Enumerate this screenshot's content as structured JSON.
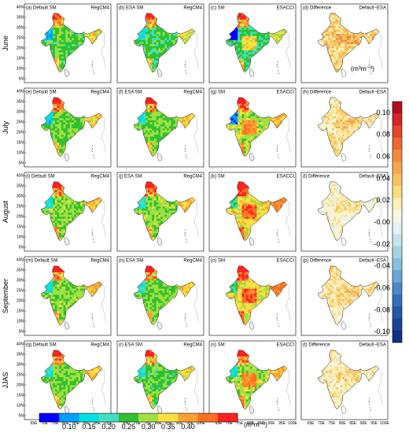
{
  "rows": [
    {
      "name": "June",
      "panels": [
        {
          "label": "(a) Default SM",
          "source": "RegCM4",
          "kind": "sm",
          "level": 0.24,
          "blue_nw": 0.12
        },
        {
          "label": "(b) ESA SM",
          "source": "RegCM4",
          "kind": "sm",
          "level": 0.23,
          "blue_nw": 0.15
        },
        {
          "label": "(c) SM",
          "source": "ESACCI",
          "kind": "obs",
          "level": 0.22,
          "blue_nw": 0.07
        },
        {
          "label": "(d) Difference",
          "source": "Default−ESA",
          "kind": "diff",
          "level": 0.03
        }
      ]
    },
    {
      "name": "July",
      "panels": [
        {
          "label": "(e) Default SM",
          "source": "RegCM4",
          "kind": "sm",
          "level": 0.25,
          "blue_nw": 0.13
        },
        {
          "label": "(f) ESA SM",
          "source": "RegCM4",
          "kind": "sm",
          "level": 0.25,
          "blue_nw": 0.15
        },
        {
          "label": "(g) SM",
          "source": "ESACCI",
          "kind": "obs",
          "level": 0.27,
          "blue_nw": 0.1
        },
        {
          "label": "(h) Difference",
          "source": "Default−ESA",
          "kind": "diff",
          "level": 0.02
        }
      ]
    },
    {
      "name": "August",
      "panels": [
        {
          "label": "(i) Default SM",
          "source": "RegCM4",
          "kind": "sm",
          "level": 0.26,
          "blue_nw": 0.15
        },
        {
          "label": "(j) ESA SM",
          "source": "RegCM4",
          "kind": "sm",
          "level": 0.26,
          "blue_nw": 0.16
        },
        {
          "label": "(k) SM",
          "source": "ESACCI",
          "kind": "obs",
          "level": 0.3,
          "blue_nw": 0.2
        },
        {
          "label": "(l) Difference",
          "source": "Default−ESA",
          "kind": "diff",
          "level": 0.01
        }
      ]
    },
    {
      "name": "September",
      "panels": [
        {
          "label": "(m) Default SM",
          "source": "RegCM4",
          "kind": "sm",
          "level": 0.26,
          "blue_nw": 0.15
        },
        {
          "label": "(n) ESA SM",
          "source": "RegCM4",
          "kind": "sm",
          "level": 0.25,
          "blue_nw": 0.16
        },
        {
          "label": "(o) SM",
          "source": "ESACCI",
          "kind": "obs",
          "level": 0.3,
          "blue_nw": 0.2
        },
        {
          "label": "(p) Difference",
          "source": "Default−ESA",
          "kind": "diff",
          "level": 0.02
        }
      ]
    },
    {
      "name": "JJAS",
      "panels": [
        {
          "label": "(q) Default SM",
          "source": "RegCM4",
          "kind": "sm",
          "level": 0.25,
          "blue_nw": 0.15
        },
        {
          "label": "(r) ESA SM",
          "source": "RegCM4",
          "kind": "sm",
          "level": 0.24,
          "blue_nw": 0.16
        },
        {
          "label": "(s) SM",
          "source": "ESACCI",
          "kind": "obs",
          "level": 0.27,
          "blue_nw": 0.15
        },
        {
          "label": "(t) Difference",
          "source": "Default−ESA",
          "kind": "diff",
          "level": 0.015
        }
      ]
    }
  ],
  "lat_ticks": [
    "40N",
    "35N",
    "30N",
    "25N",
    "20N",
    "15N",
    "10N",
    "5N"
  ],
  "lon_ticks": [
    "65E",
    "70E",
    "75E",
    "80E",
    "85E",
    "90E",
    "95E",
    "100E"
  ],
  "sm_colorbar": {
    "labels": [
      "0.10",
      "0.15",
      "0.20",
      "0.25",
      "0.30",
      "0.35",
      "0.40"
    ],
    "colors": [
      "#0000ff",
      "#00a0ff",
      "#00e0e0",
      "#40e0c0",
      "#30c030",
      "#a0e040",
      "#ffe040",
      "#ffa030",
      "#ff7020",
      "#ff2020"
    ],
    "unit": "(m³m⁻³)"
  },
  "diff_colorbar": {
    "labels": [
      "0.10",
      "0.08",
      "0.06",
      "0.04",
      "0.02",
      "-0.00",
      "-0.02",
      "-0.04",
      "-0.06",
      "-0.08",
      "-0.10"
    ],
    "colors": [
      "#b01020",
      "#d02828",
      "#e04828",
      "#ec6a30",
      "#f28a40",
      "#f5a64c",
      "#f8c25e",
      "#fadc80",
      "#fdf0b8",
      "#f6f6e6",
      "#e6f2f4",
      "#c8e4ec",
      "#a6d2e4",
      "#88bede",
      "#6aa6d6",
      "#4a88c8",
      "#3270b8",
      "#2458a8",
      "#1a4496",
      "#103080"
    ],
    "unit": "(m³m⁻³)"
  }
}
